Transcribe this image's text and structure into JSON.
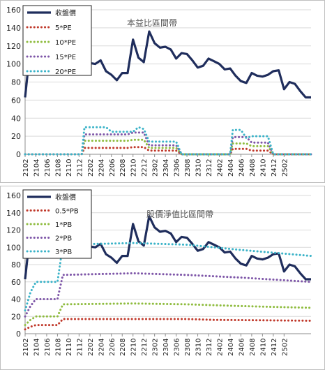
{
  "chart_data": [
    {
      "type": "line",
      "title": "本益比區間帶",
      "x_ticks": [
        "2102",
        "2104",
        "2106",
        "2108",
        "2110",
        "2112",
        "2202",
        "2204",
        "2206",
        "2208",
        "2210",
        "2212",
        "2302",
        "2304",
        "2306",
        "2308",
        "2310",
        "2312",
        "2402",
        "2404",
        "2406",
        "2408",
        "2410",
        "2412",
        "2502"
      ],
      "ylim": [
        0,
        160
      ],
      "y_ticks": [
        0,
        20,
        40,
        60,
        80,
        100,
        120,
        140,
        160
      ],
      "grid": "horizontal",
      "legend_position": "top-left",
      "series": [
        {
          "name": "收盤價",
          "color": "#1f2d5c",
          "style": "solid",
          "points": [
            [
              0,
              63
            ],
            [
              1,
              120
            ],
            [
              2,
              125
            ],
            [
              3,
              115
            ],
            [
              4,
              105
            ],
            [
              5,
              110
            ],
            [
              6,
              100
            ],
            [
              7,
              108
            ],
            [
              8,
              112
            ],
            [
              9,
              105
            ],
            [
              10,
              98
            ],
            [
              11,
              103
            ],
            [
              12,
              101
            ],
            [
              13,
              100
            ],
            [
              14,
              104
            ],
            [
              15,
              92
            ],
            [
              16,
              88
            ],
            [
              17,
              82
            ],
            [
              18,
              90
            ],
            [
              19,
              90
            ],
            [
              20,
              127
            ],
            [
              21,
              107
            ],
            [
              22,
              102
            ],
            [
              23,
              136
            ],
            [
              24,
              123
            ],
            [
              25,
              118
            ],
            [
              26,
              119
            ],
            [
              27,
              116
            ],
            [
              28,
              106
            ],
            [
              29,
              112
            ],
            [
              30,
              111
            ],
            [
              31,
              104
            ],
            [
              32,
              96
            ],
            [
              33,
              98
            ],
            [
              34,
              106
            ],
            [
              35,
              103
            ],
            [
              36,
              100
            ],
            [
              37,
              94
            ],
            [
              38,
              95
            ],
            [
              39,
              87
            ],
            [
              40,
              81
            ],
            [
              41,
              79
            ],
            [
              42,
              90
            ],
            [
              43,
              87
            ],
            [
              44,
              86
            ],
            [
              45,
              88
            ],
            [
              46,
              92
            ],
            [
              47,
              93
            ],
            [
              48,
              72
            ],
            [
              49,
              80
            ],
            [
              50,
              78
            ],
            [
              51,
              70
            ],
            [
              52,
              63
            ],
            [
              53,
              63
            ]
          ]
        },
        {
          "name": "5*PE",
          "color": "#c0392b",
          "style": "dotted",
          "points": [
            [
              0,
              0
            ],
            [
              10.5,
              0
            ],
            [
              11,
              7
            ],
            [
              19,
              7
            ],
            [
              20,
              8
            ],
            [
              22,
              8
            ],
            [
              23,
              4
            ],
            [
              28,
              4
            ],
            [
              29,
              0
            ],
            [
              38,
              0
            ],
            [
              38.5,
              6
            ],
            [
              41,
              6
            ],
            [
              42,
              4
            ],
            [
              45,
              4
            ],
            [
              46,
              0
            ],
            [
              53,
              0
            ]
          ]
        },
        {
          "name": "10*PE",
          "color": "#8fbc3f",
          "style": "dotted",
          "points": [
            [
              0,
              0
            ],
            [
              10.5,
              0
            ],
            [
              11,
              15
            ],
            [
              19,
              15
            ],
            [
              20,
              16
            ],
            [
              22,
              16
            ],
            [
              23,
              7
            ],
            [
              28,
              7
            ],
            [
              29,
              0
            ],
            [
              38,
              0
            ],
            [
              38.5,
              12
            ],
            [
              41,
              12
            ],
            [
              42,
              9
            ],
            [
              45,
              9
            ],
            [
              46,
              0
            ],
            [
              53,
              0
            ]
          ]
        },
        {
          "name": "15*PE",
          "color": "#7e56a8",
          "style": "dotted",
          "points": [
            [
              0,
              0
            ],
            [
              10.5,
              0
            ],
            [
              11,
              22
            ],
            [
              19,
              22
            ],
            [
              20,
              24
            ],
            [
              22,
              24
            ],
            [
              23,
              10
            ],
            [
              28,
              10
            ],
            [
              29,
              0
            ],
            [
              38,
              0
            ],
            [
              38.5,
              19
            ],
            [
              41,
              19
            ],
            [
              42,
              13
            ],
            [
              45,
              13
            ],
            [
              46,
              0
            ],
            [
              53,
              0
            ]
          ]
        },
        {
          "name": "20*PE",
          "color": "#3bb3c8",
          "style": "dotted",
          "points": [
            [
              0,
              0
            ],
            [
              10.5,
              0
            ],
            [
              11,
              30
            ],
            [
              15,
              30
            ],
            [
              16,
              25
            ],
            [
              20,
              25
            ],
            [
              21,
              30
            ],
            [
              22,
              28
            ],
            [
              23,
              14
            ],
            [
              28,
              14
            ],
            [
              29,
              0
            ],
            [
              38,
              0
            ],
            [
              38.5,
              27
            ],
            [
              40,
              27
            ],
            [
              41,
              18
            ],
            [
              42,
              20
            ],
            [
              45,
              20
            ],
            [
              46,
              0
            ],
            [
              53,
              0
            ]
          ]
        }
      ]
    },
    {
      "type": "line",
      "title": "股價淨值比區間帶",
      "x_ticks": [
        "2102",
        "2104",
        "2106",
        "2108",
        "2110",
        "2112",
        "2202",
        "2204",
        "2206",
        "2208",
        "2210",
        "2212",
        "2302",
        "2304",
        "2306",
        "2308",
        "2310",
        "2312",
        "2402",
        "2404",
        "2406",
        "2408",
        "2410",
        "2412",
        "2502"
      ],
      "ylim": [
        0,
        160
      ],
      "y_ticks": [
        0,
        20,
        40,
        60,
        80,
        100,
        120,
        140,
        160
      ],
      "grid": "horizontal",
      "legend_position": "top-left",
      "series": [
        {
          "name": "收盤價",
          "color": "#1f2d5c",
          "style": "solid",
          "points": [
            [
              0,
              63
            ],
            [
              1,
              120
            ],
            [
              2,
              125
            ],
            [
              3,
              115
            ],
            [
              4,
              105
            ],
            [
              5,
              110
            ],
            [
              6,
              100
            ],
            [
              7,
              108
            ],
            [
              8,
              112
            ],
            [
              9,
              105
            ],
            [
              10,
              98
            ],
            [
              11,
              103
            ],
            [
              12,
              101
            ],
            [
              13,
              100
            ],
            [
              14,
              104
            ],
            [
              15,
              92
            ],
            [
              16,
              88
            ],
            [
              17,
              82
            ],
            [
              18,
              90
            ],
            [
              19,
              90
            ],
            [
              20,
              127
            ],
            [
              21,
              107
            ],
            [
              22,
              102
            ],
            [
              23,
              136
            ],
            [
              24,
              123
            ],
            [
              25,
              118
            ],
            [
              26,
              119
            ],
            [
              27,
              116
            ],
            [
              28,
              106
            ],
            [
              29,
              112
            ],
            [
              30,
              111
            ],
            [
              31,
              104
            ],
            [
              32,
              96
            ],
            [
              33,
              98
            ],
            [
              34,
              106
            ],
            [
              35,
              103
            ],
            [
              36,
              100
            ],
            [
              37,
              94
            ],
            [
              38,
              95
            ],
            [
              39,
              87
            ],
            [
              40,
              81
            ],
            [
              41,
              79
            ],
            [
              42,
              90
            ],
            [
              43,
              87
            ],
            [
              44,
              86
            ],
            [
              45,
              88
            ],
            [
              46,
              92
            ],
            [
              47,
              93
            ],
            [
              48,
              72
            ],
            [
              49,
              80
            ],
            [
              50,
              78
            ],
            [
              51,
              70
            ],
            [
              52,
              63
            ],
            [
              53,
              63
            ]
          ]
        },
        {
          "name": "0.5*PB",
          "color": "#c0392b",
          "style": "dotted",
          "points": [
            [
              0,
              5
            ],
            [
              1,
              8
            ],
            [
              2,
              10
            ],
            [
              6,
              10
            ],
            [
              7,
              17
            ],
            [
              30,
              17
            ],
            [
              35,
              16
            ],
            [
              53,
              15
            ]
          ]
        },
        {
          "name": "1*PB",
          "color": "#8fbc3f",
          "style": "dotted",
          "points": [
            [
              0,
              10
            ],
            [
              1,
              16
            ],
            [
              2,
              20
            ],
            [
              6,
              20
            ],
            [
              7,
              34
            ],
            [
              20,
              35
            ],
            [
              30,
              34
            ],
            [
              40,
              32
            ],
            [
              53,
              30
            ]
          ]
        },
        {
          "name": "2*PB",
          "color": "#7e56a8",
          "style": "dotted",
          "points": [
            [
              0,
              20
            ],
            [
              1,
              32
            ],
            [
              2,
              40
            ],
            [
              6,
              40
            ],
            [
              7,
              68
            ],
            [
              20,
              70
            ],
            [
              30,
              68
            ],
            [
              40,
              65
            ],
            [
              53,
              60
            ]
          ]
        },
        {
          "name": "3*PB",
          "color": "#3bb3c8",
          "style": "dotted",
          "points": [
            [
              0,
              27
            ],
            [
              1,
              48
            ],
            [
              2,
              60
            ],
            [
              6,
              60
            ],
            [
              7,
              103
            ],
            [
              20,
              105
            ],
            [
              30,
              103
            ],
            [
              40,
              97
            ],
            [
              53,
              90
            ]
          ]
        }
      ]
    }
  ]
}
